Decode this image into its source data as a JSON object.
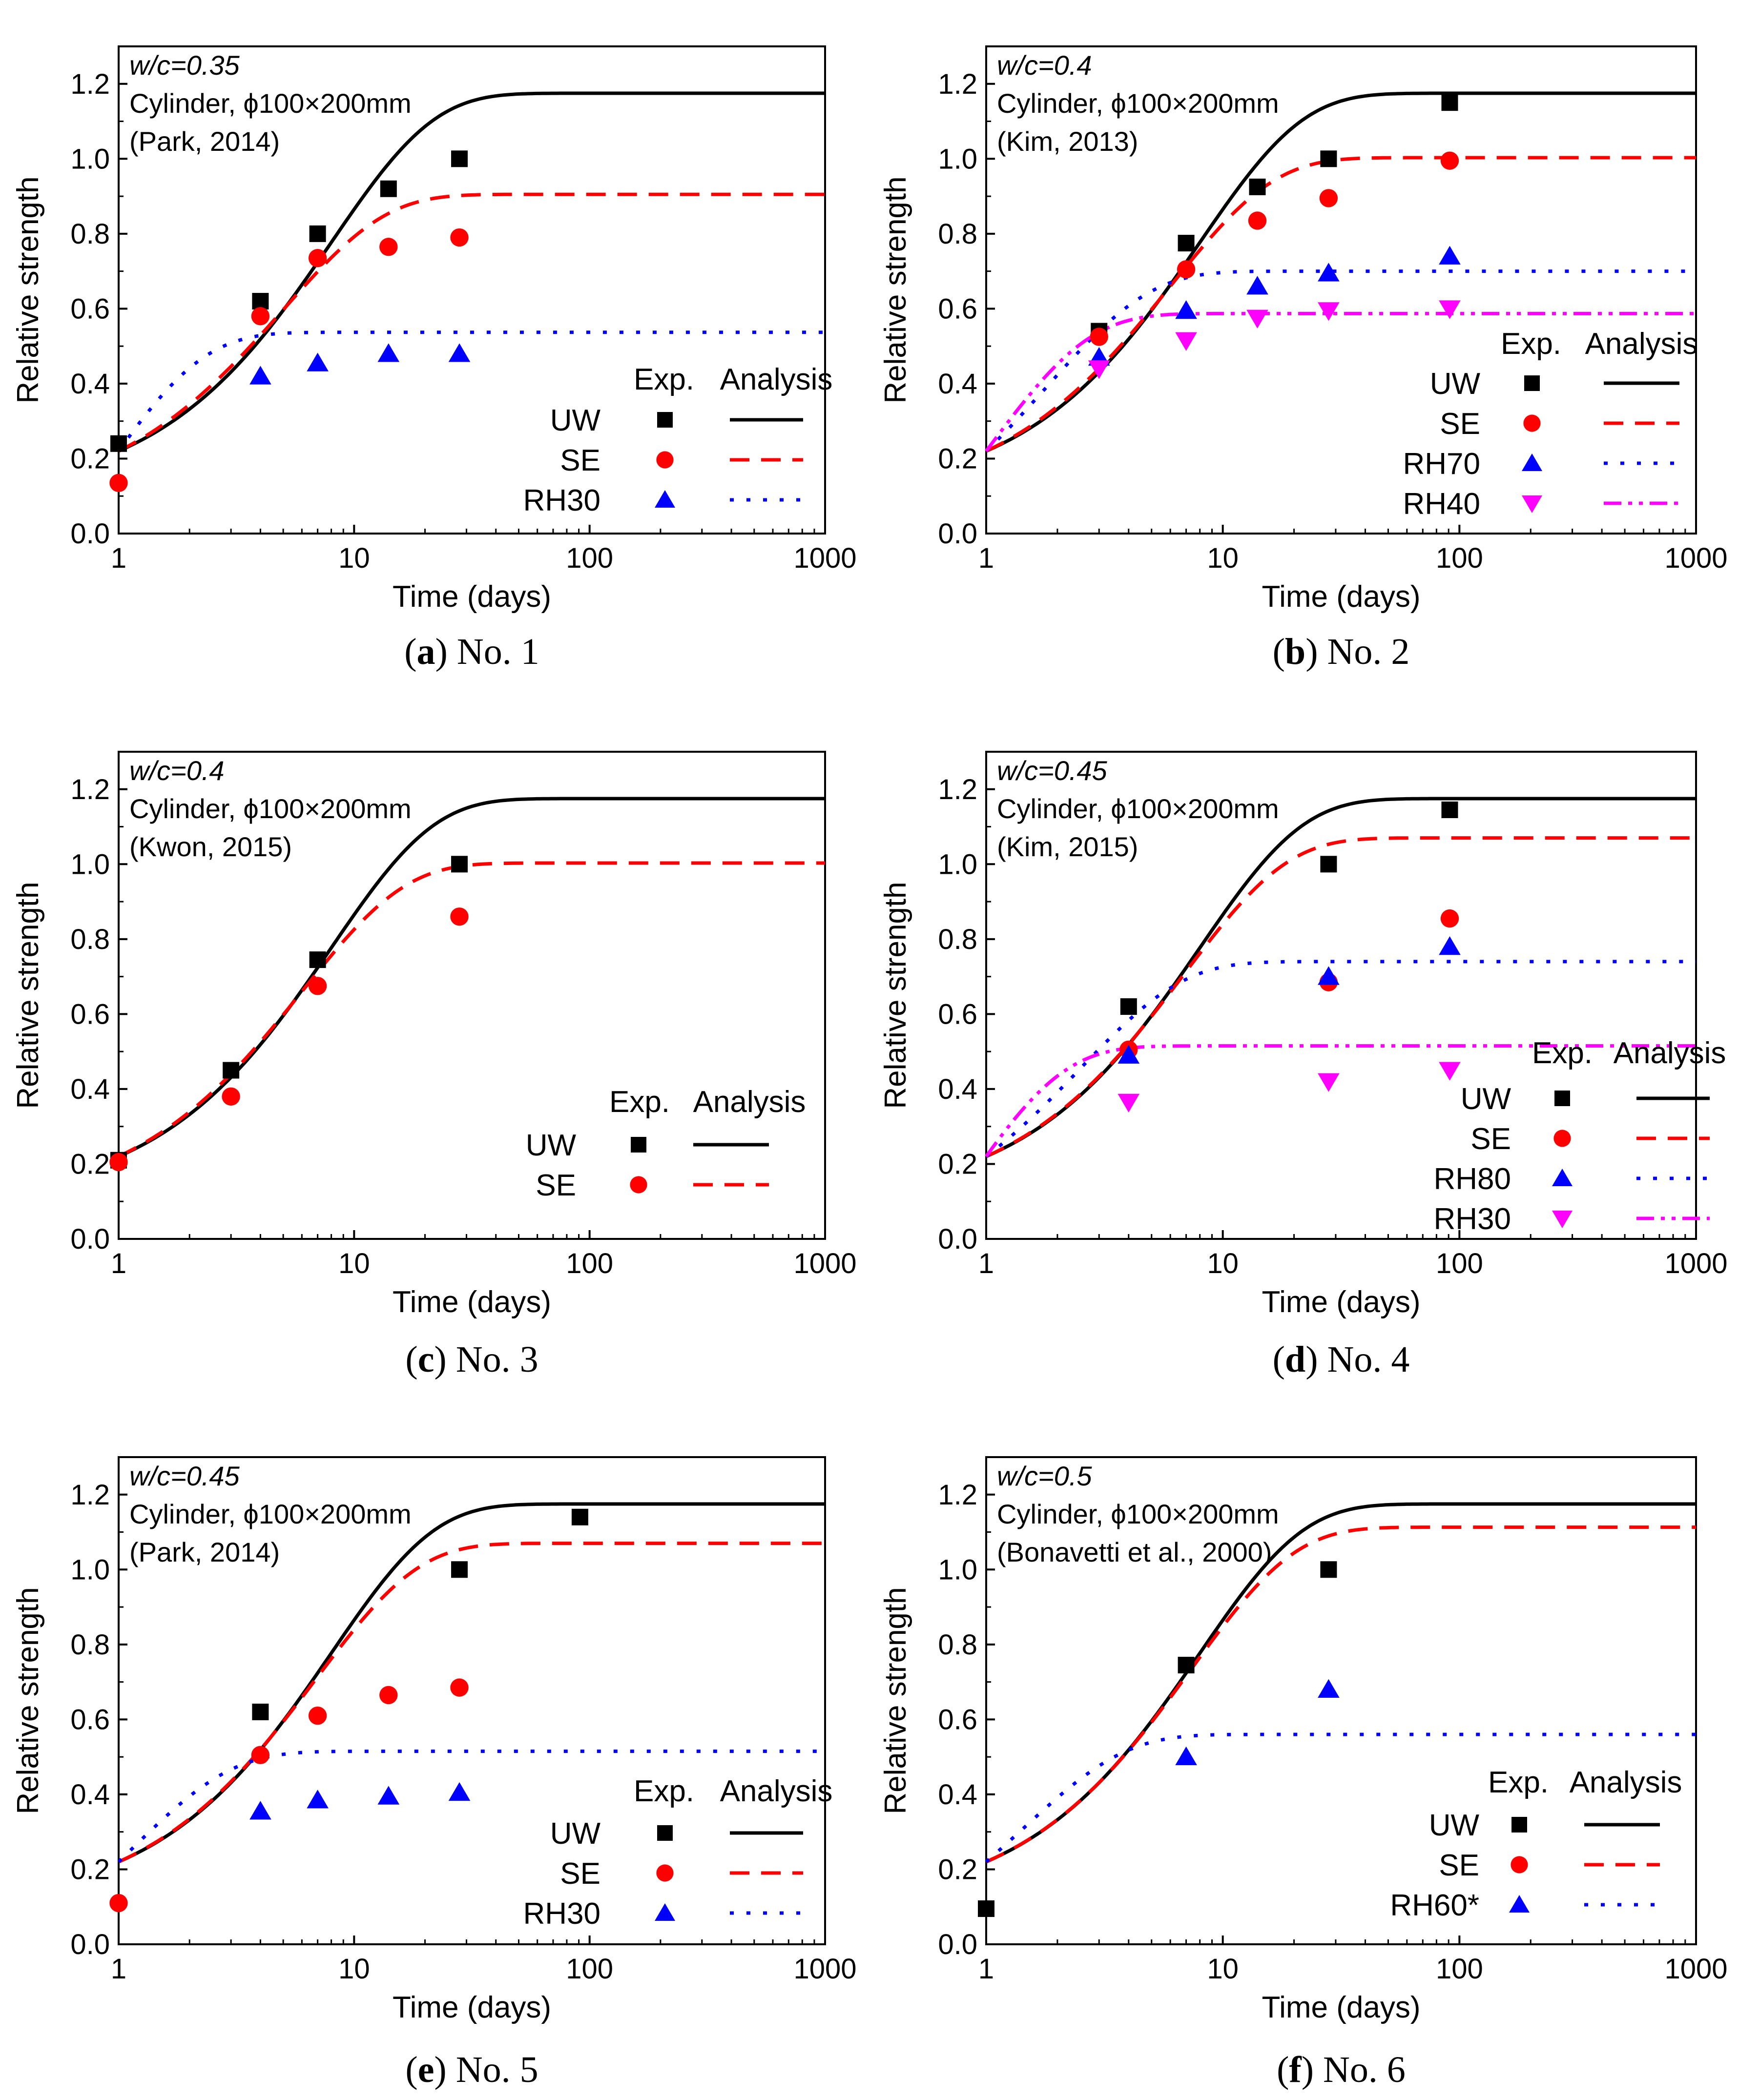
{
  "figure": {
    "charts_total": 6
  },
  "chart_data": [
    {
      "type": "line+scatter",
      "caption": {
        "letter": "a",
        "label": "No. 1"
      },
      "notes": [
        "w/c=0.35",
        "Cylinder, ϕ100×200mm",
        "(Park, 2014)"
      ],
      "xlabel": "Time (days)",
      "ylabel": "Relative strength",
      "xscale": "log",
      "xlim": [
        1,
        1000
      ],
      "ylim": [
        0,
        1.3
      ],
      "xticks": [
        "1",
        "10",
        "100",
        "1000"
      ],
      "yticks": [
        "0.0",
        "0.2",
        "0.4",
        "0.6",
        "0.8",
        "1.0",
        "1.2"
      ],
      "legend": {
        "position": "bottom-right",
        "header": [
          "Exp.",
          "Analysis"
        ]
      },
      "series": [
        {
          "name": "UW",
          "color": "#000000",
          "marker": "square",
          "line": "solid",
          "analysis": {
            "limit": 1.175,
            "k": 0.125
          },
          "points": [
            [
              1,
              0.24
            ],
            [
              4,
              0.62
            ],
            [
              7,
              0.8
            ],
            [
              14,
              0.92
            ],
            [
              28,
              1.0
            ]
          ]
        },
        {
          "name": "SE",
          "color": "#ff0000",
          "marker": "circle",
          "line": "dash",
          "analysis": {
            "limit": 0.905,
            "k": 0.2
          },
          "points": [
            [
              1,
              0.135
            ],
            [
              4,
              0.58
            ],
            [
              7,
              0.735
            ],
            [
              14,
              0.765
            ],
            [
              28,
              0.79
            ]
          ]
        },
        {
          "name": "RH30",
          "color": "#0000ff",
          "marker": "triangle-up",
          "line": "dot",
          "analysis": {
            "limit": 0.537,
            "k": 1.2
          },
          "points": [
            [
              4,
              0.42
            ],
            [
              7,
              0.455
            ],
            [
              14,
              0.48
            ],
            [
              28,
              0.48
            ]
          ]
        }
      ]
    },
    {
      "type": "line+scatter",
      "caption": {
        "letter": "b",
        "label": "No. 2"
      },
      "notes": [
        "w/c=0.4",
        "Cylinder, ϕ100×200mm",
        "(Kim, 2013)"
      ],
      "xlabel": "Time (days)",
      "ylabel": "Relative strength",
      "xscale": "log",
      "xlim": [
        1,
        1000
      ],
      "ylim": [
        0,
        1.3
      ],
      "xticks": [
        "1",
        "10",
        "100",
        "1000"
      ],
      "yticks": [
        "0.0",
        "0.2",
        "0.4",
        "0.6",
        "0.8",
        "1.0",
        "1.2"
      ],
      "legend": {
        "position": "center-right",
        "header": [
          "Exp.",
          "Analysis"
        ]
      },
      "series": [
        {
          "name": "UW",
          "color": "#000000",
          "marker": "square",
          "line": "solid",
          "analysis": {
            "limit": 1.175,
            "k": 0.125
          },
          "points": [
            [
              3,
              0.54
            ],
            [
              7,
              0.775
            ],
            [
              14,
              0.925
            ],
            [
              28,
              1.0
            ],
            [
              91,
              1.15
            ]
          ]
        },
        {
          "name": "SE",
          "color": "#ff0000",
          "marker": "circle",
          "line": "dash",
          "analysis": {
            "limit": 1.003,
            "k": 0.165
          },
          "points": [
            [
              3,
              0.525
            ],
            [
              7,
              0.705
            ],
            [
              14,
              0.835
            ],
            [
              28,
              0.895
            ],
            [
              91,
              0.995
            ]
          ]
        },
        {
          "name": "RH70",
          "color": "#0000ff",
          "marker": "triangle-up",
          "line": "dot",
          "analysis": {
            "limit": 0.7,
            "k": 0.55
          },
          "points": [
            [
              3,
              0.47
            ],
            [
              7,
              0.595
            ],
            [
              14,
              0.66
            ],
            [
              28,
              0.695
            ],
            [
              91,
              0.74
            ]
          ]
        },
        {
          "name": "RH40",
          "color": "#ff00ff",
          "marker": "triangle-down",
          "line": "dashdotdot",
          "analysis": {
            "limit": 0.587,
            "k": 1.0
          },
          "points": [
            [
              3,
              0.44
            ],
            [
              7,
              0.515
            ],
            [
              14,
              0.575
            ],
            [
              28,
              0.595
            ],
            [
              91,
              0.6
            ]
          ]
        }
      ]
    },
    {
      "type": "line+scatter",
      "caption": {
        "letter": "c",
        "label": "No. 3"
      },
      "notes": [
        "w/c=0.4",
        "Cylinder, ϕ100×200mm",
        "(Kwon, 2015)"
      ],
      "xlabel": "Time (days)",
      "ylabel": "Relative strength",
      "xscale": "log",
      "xlim": [
        1,
        1000
      ],
      "ylim": [
        0,
        1.3
      ],
      "xticks": [
        "1",
        "10",
        "100",
        "1000"
      ],
      "yticks": [
        "0.0",
        "0.2",
        "0.4",
        "0.6",
        "0.8",
        "1.0",
        "1.2"
      ],
      "legend": {
        "position": "bottom-right",
        "header": [
          "Exp.",
          "Analysis"
        ]
      },
      "series": [
        {
          "name": "UW",
          "color": "#000000",
          "marker": "square",
          "line": "solid",
          "analysis": {
            "limit": 1.175,
            "k": 0.125
          },
          "points": [
            [
              1,
              0.21
            ],
            [
              3,
              0.45
            ],
            [
              7,
              0.745
            ],
            [
              28,
              1.0
            ]
          ]
        },
        {
          "name": "SE",
          "color": "#ff0000",
          "marker": "circle",
          "line": "dash",
          "analysis": {
            "limit": 1.003,
            "k": 0.165
          },
          "points": [
            [
              1,
              0.205
            ],
            [
              3,
              0.38
            ],
            [
              7,
              0.675
            ],
            [
              28,
              0.86
            ]
          ]
        }
      ]
    },
    {
      "type": "line+scatter",
      "caption": {
        "letter": "d",
        "label": "No. 4"
      },
      "notes": [
        "w/c=0.45",
        "Cylinder, ϕ100×200mm",
        "(Kim, 2015)"
      ],
      "xlabel": "Time (days)",
      "ylabel": "Relative strength",
      "xscale": "log",
      "xlim": [
        1,
        1000
      ],
      "ylim": [
        0,
        1.3
      ],
      "xticks": [
        "1",
        "10",
        "100",
        "1000"
      ],
      "yticks": [
        "0.0",
        "0.2",
        "0.4",
        "0.6",
        "0.8",
        "1.0",
        "1.2"
      ],
      "legend": {
        "position": "bottom-right",
        "header": [
          "Exp.",
          "Analysis"
        ]
      },
      "series": [
        {
          "name": "UW",
          "color": "#000000",
          "marker": "square",
          "line": "solid",
          "analysis": {
            "limit": 1.175,
            "k": 0.125
          },
          "points": [
            [
              4,
              0.62
            ],
            [
              28,
              1.0
            ],
            [
              91,
              1.145
            ]
          ]
        },
        {
          "name": "SE",
          "color": "#ff0000",
          "marker": "circle",
          "line": "dash",
          "analysis": {
            "limit": 1.07,
            "k": 0.145
          },
          "points": [
            [
              4,
              0.505
            ],
            [
              28,
              0.685
            ],
            [
              91,
              0.855
            ]
          ]
        },
        {
          "name": "RH80",
          "color": "#0000ff",
          "marker": "triangle-up",
          "line": "dot",
          "analysis": {
            "limit": 0.74,
            "k": 0.4
          },
          "points": [
            [
              4,
              0.49
            ],
            [
              28,
              0.7
            ],
            [
              91,
              0.78
            ]
          ]
        },
        {
          "name": "RH30",
          "color": "#ff00ff",
          "marker": "triangle-down",
          "line": "dashdotdot",
          "analysis": {
            "limit": 0.515,
            "k": 1.3
          },
          "points": [
            [
              4,
              0.365
            ],
            [
              28,
              0.42
            ],
            [
              91,
              0.45
            ]
          ]
        }
      ]
    },
    {
      "type": "line+scatter",
      "caption": {
        "letter": "e",
        "label": "No. 5"
      },
      "notes": [
        "w/c=0.45",
        "Cylinder, ϕ100×200mm",
        "(Park, 2014)"
      ],
      "xlabel": "Time (days)",
      "ylabel": "Relative strength",
      "xscale": "log",
      "xlim": [
        1,
        1000
      ],
      "ylim": [
        0,
        1.3
      ],
      "xticks": [
        "1",
        "10",
        "100",
        "1000"
      ],
      "yticks": [
        "0.0",
        "0.2",
        "0.4",
        "0.6",
        "0.8",
        "1.0",
        "1.2"
      ],
      "legend": {
        "position": "bottom-right",
        "header": [
          "Exp.",
          "Analysis"
        ]
      },
      "series": [
        {
          "name": "UW",
          "color": "#000000",
          "marker": "square",
          "line": "solid",
          "analysis": {
            "limit": 1.175,
            "k": 0.125
          },
          "points": [
            [
              4,
              0.62
            ],
            [
              28,
              1.0
            ],
            [
              91,
              1.14
            ]
          ]
        },
        {
          "name": "SE",
          "color": "#ff0000",
          "marker": "circle",
          "line": "dash",
          "analysis": {
            "limit": 1.07,
            "k": 0.145
          },
          "points": [
            [
              1,
              0.11
            ],
            [
              4,
              0.505
            ],
            [
              7,
              0.61
            ],
            [
              14,
              0.665
            ],
            [
              28,
              0.685
            ]
          ]
        },
        {
          "name": "RH30",
          "color": "#0000ff",
          "marker": "triangle-up",
          "line": "dot",
          "analysis": {
            "limit": 0.515,
            "k": 0.9
          },
          "points": [
            [
              4,
              0.355
            ],
            [
              7,
              0.385
            ],
            [
              14,
              0.395
            ],
            [
              28,
              0.405
            ]
          ]
        }
      ]
    },
    {
      "type": "line+scatter",
      "caption": {
        "letter": "f",
        "label": "No. 6"
      },
      "notes": [
        "w/c=0.5",
        "Cylinder, ϕ100×200mm",
        "(Bonavetti et al., 2000)"
      ],
      "xlabel": "Time (days)",
      "ylabel": "Relative strength",
      "xscale": "log",
      "xlim": [
        1,
        1000
      ],
      "ylim": [
        0,
        1.3
      ],
      "xticks": [
        "1",
        "10",
        "100",
        "1000"
      ],
      "yticks": [
        "0.0",
        "0.2",
        "0.4",
        "0.6",
        "0.8",
        "1.0",
        "1.2"
      ],
      "legend": {
        "position": "bottom-right",
        "header": [
          "Exp.",
          "Analysis"
        ]
      },
      "series": [
        {
          "name": "UW",
          "color": "#000000",
          "marker": "square",
          "line": "solid",
          "analysis": {
            "limit": 1.175,
            "k": 0.125
          },
          "points": [
            [
              1,
              0.095
            ],
            [
              7,
              0.745
            ],
            [
              28,
              1.0
            ]
          ]
        },
        {
          "name": "SE",
          "color": "#ff0000",
          "marker": "circle",
          "line": "dash",
          "analysis": {
            "limit": 1.113,
            "k": 0.135
          },
          "points": []
        },
        {
          "name": "RH60*",
          "color": "#0000ff",
          "marker": "triangle-up",
          "line": "dot",
          "analysis": {
            "limit": 0.56,
            "k": 0.7
          },
          "points": [
            [
              7,
              0.5
            ],
            [
              28,
              0.68
            ]
          ]
        }
      ]
    }
  ]
}
